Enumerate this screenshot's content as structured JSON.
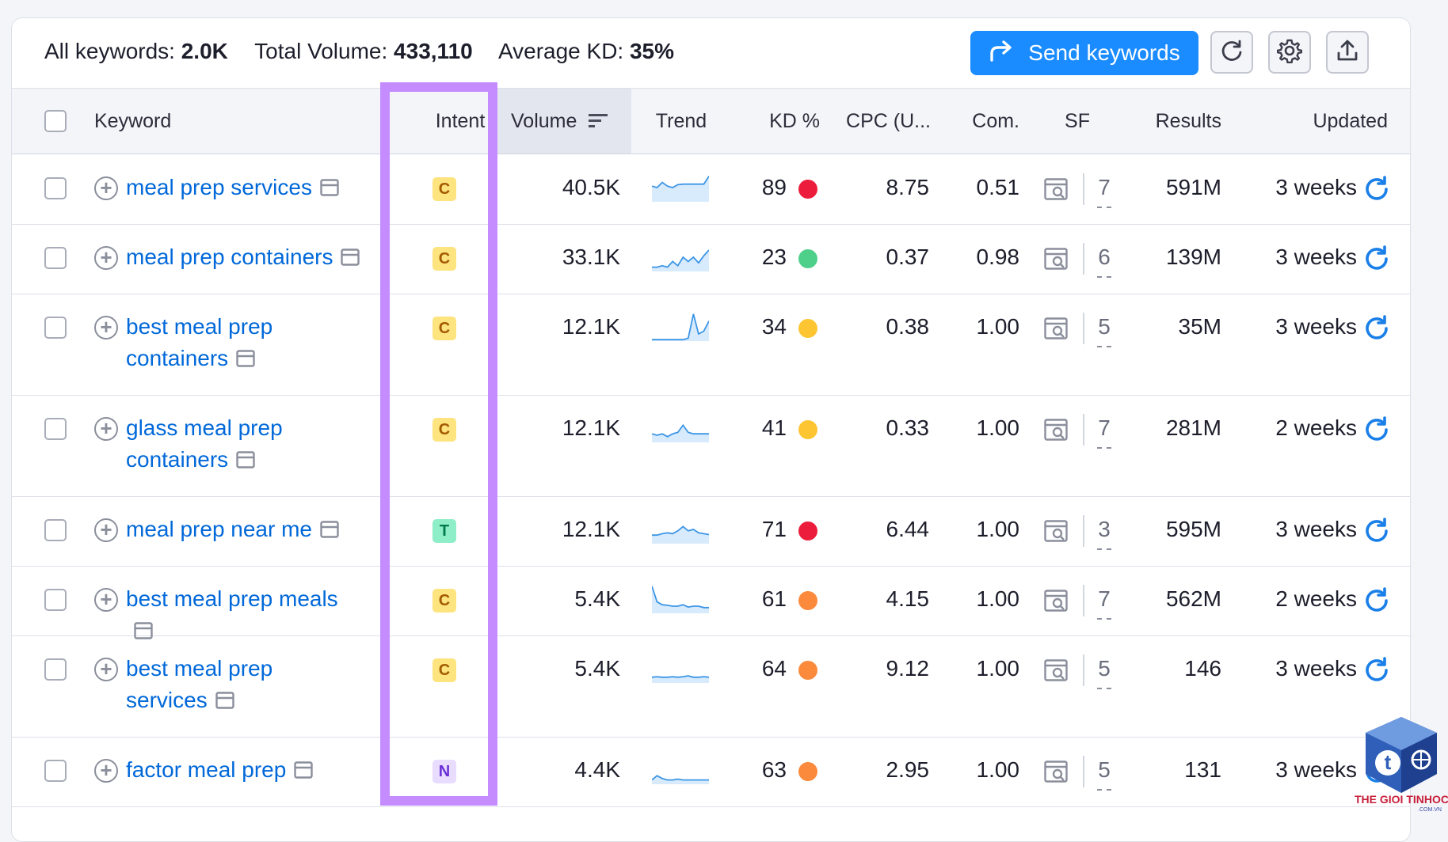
{
  "summary": {
    "all_keywords_label": "All keywords:",
    "all_keywords_value": "2.0K",
    "total_volume_label": "Total Volume:",
    "total_volume_value": "433,110",
    "average_kd_label": "Average KD:",
    "average_kd_value": "35%"
  },
  "toolbar": {
    "send_label": "Send keywords",
    "icons": [
      "refresh-icon",
      "gear-icon",
      "upload-icon"
    ]
  },
  "columns": {
    "keyword": "Keyword",
    "intent": "Intent",
    "volume": "Volume",
    "trend": "Trend",
    "kd": "KD %",
    "cpc": "CPC (U...",
    "com": "Com.",
    "sf": "SF",
    "results": "Results",
    "updated": "Updated"
  },
  "colors": {
    "accent": "#1a8cff",
    "link": "#0068d9",
    "highlight_frame": "#c48cff",
    "intent_commercial_bg": "#fde47f",
    "intent_commercial_fg": "#a35a00",
    "intent_transactional_bg": "#8eeec7",
    "intent_transactional_fg": "#007a4d",
    "intent_navigational_bg": "#e8dcff",
    "intent_navigational_fg": "#6b2fd6",
    "kd_red": "#ec1c3c",
    "kd_green": "#4ed08b",
    "kd_yellow": "#fdc532",
    "kd_orange": "#fb8a3c"
  },
  "rows": [
    {
      "keyword_line1": "meal prep services",
      "keyword_line2": "",
      "intent": "C",
      "volume": "40.5K",
      "trend": [
        0.55,
        0.5,
        0.68,
        0.55,
        0.5,
        0.6,
        0.62,
        0.62,
        0.62,
        0.62,
        0.62,
        0.9
      ],
      "kd": "89",
      "kd_color": "#ec1c3c",
      "cpc": "8.75",
      "com": "0.51",
      "sf": "7",
      "results": "591M",
      "updated": "3 weeks"
    },
    {
      "keyword_line1": "meal prep containers",
      "keyword_line2": "",
      "intent": "C",
      "volume": "33.1K",
      "trend": [
        0.15,
        0.15,
        0.2,
        0.15,
        0.35,
        0.2,
        0.5,
        0.35,
        0.5,
        0.3,
        0.55,
        0.75
      ],
      "kd": "23",
      "kd_color": "#4ed08b",
      "cpc": "0.37",
      "com": "0.98",
      "sf": "6",
      "results": "139M",
      "updated": "3 weeks"
    },
    {
      "keyword_line1": "best meal prep",
      "keyword_line2": "containers",
      "intent": "C",
      "volume": "12.1K",
      "trend": [
        0.05,
        0.05,
        0.05,
        0.05,
        0.05,
        0.05,
        0.05,
        0.1,
        0.95,
        0.25,
        0.35,
        0.7
      ],
      "kd": "34",
      "kd_color": "#fdc532",
      "cpc": "0.38",
      "com": "1.00",
      "sf": "5",
      "results": "35M",
      "updated": "3 weeks"
    },
    {
      "keyword_line1": "glass meal prep",
      "keyword_line2": "containers",
      "intent": "C",
      "volume": "12.1K",
      "trend": [
        0.3,
        0.25,
        0.3,
        0.2,
        0.3,
        0.35,
        0.6,
        0.35,
        0.3,
        0.3,
        0.3,
        0.3
      ],
      "kd": "41",
      "kd_color": "#fdc532",
      "cpc": "0.33",
      "com": "1.00",
      "sf": "7",
      "results": "281M",
      "updated": "2 weeks"
    },
    {
      "keyword_line1": "meal prep near me",
      "keyword_line2": "",
      "intent": "T",
      "volume": "12.1K",
      "trend": [
        0.3,
        0.3,
        0.35,
        0.38,
        0.35,
        0.45,
        0.6,
        0.45,
        0.5,
        0.38,
        0.35,
        0.32
      ],
      "kd": "71",
      "kd_color": "#ec1c3c",
      "cpc": "6.44",
      "com": "1.00",
      "sf": "3",
      "results": "595M",
      "updated": "3 weeks"
    },
    {
      "keyword_line1": "best meal prep meals",
      "keyword_line2": "",
      "intent": "C",
      "volume": "5.4K",
      "trend": [
        0.95,
        0.4,
        0.3,
        0.28,
        0.25,
        0.25,
        0.3,
        0.22,
        0.25,
        0.25,
        0.2,
        0.2
      ],
      "kd": "61",
      "kd_color": "#fb8a3c",
      "cpc": "4.15",
      "com": "1.00",
      "sf": "7",
      "results": "562M",
      "updated": "2 weeks"
    },
    {
      "keyword_line1": "best meal prep",
      "keyword_line2": "services",
      "intent": "C",
      "volume": "5.4K",
      "trend": [
        0.2,
        0.22,
        0.2,
        0.2,
        0.22,
        0.2,
        0.22,
        0.25,
        0.2,
        0.2,
        0.22,
        0.2
      ],
      "kd": "64",
      "kd_color": "#fb8a3c",
      "cpc": "9.12",
      "com": "1.00",
      "sf": "5",
      "results": "146",
      "updated": "3 weeks"
    },
    {
      "keyword_line1": "factor meal prep",
      "keyword_line2": "",
      "intent": "N",
      "volume": "4.4K",
      "trend": [
        0.15,
        0.3,
        0.2,
        0.15,
        0.15,
        0.18,
        0.15,
        0.15,
        0.15,
        0.15,
        0.15,
        0.15
      ],
      "kd": "63",
      "kd_color": "#fb8a3c",
      "cpc": "2.95",
      "com": "1.00",
      "sf": "5",
      "results": "131",
      "updated": "3 weeks"
    }
  ],
  "watermark": {
    "brand": "THE GIOI TINHOC",
    "domain": ".COM.VN",
    "logo_letter": "t"
  }
}
